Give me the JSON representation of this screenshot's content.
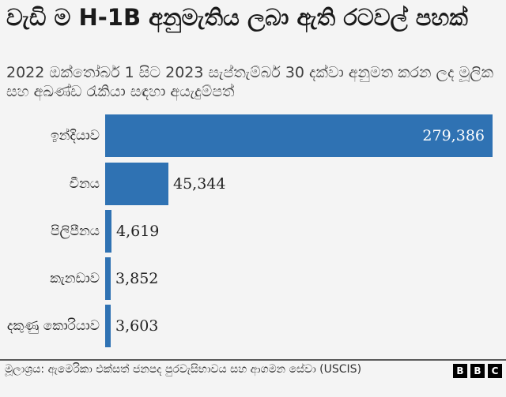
{
  "header": {
    "title": "වැඩි ම H-1B අනුමැතිය ලබා ඇති රටවල් පහක්",
    "subtitle": "2022 ඔක්තෝබර් 1 සිට 2023 සැප්තැම්බර් 30 දක්වා අනුමත කරන ලද මූලික සහ අඛණ්ඩ රැකියා සඳහා අයැදුම්පත්"
  },
  "chart_data": {
    "type": "bar",
    "orientation": "horizontal",
    "title": "වැඩි ම H-1B අනුමැතිය ලබා ඇති රටවල් පහක්",
    "subtitle": "2022 ඔක්තෝබර් 1 සිට 2023 සැප්තැම්බර් 30 දක්වා අනුමත කරන ලද මූලික සහ අඛණ්ඩ රැකියා සඳහා අයැදුම්පත්",
    "categories": [
      "ඉන්දියාව",
      "චීනය",
      "පිලිපීනය",
      "කැනඩාව",
      "දකුණු කොරියාව"
    ],
    "values": [
      279386,
      45344,
      4619,
      3852,
      3603
    ],
    "value_labels": [
      "279,386",
      "45,344",
      "4,619",
      "3,852",
      "3,603"
    ],
    "xlabel": "",
    "ylabel": "",
    "grid": false,
    "legend": null,
    "bar_color": "#2f72b3"
  },
  "rows": [
    {
      "label": "ඉන්දියාව",
      "value": "279,386"
    },
    {
      "label": "චීනය",
      "value": "45,344"
    },
    {
      "label": "පිලිපීනය",
      "value": "4,619"
    },
    {
      "label": "කැනඩාව",
      "value": "3,852"
    },
    {
      "label": "දකුණු කොරියාව",
      "value": "3,603"
    }
  ],
  "footer": {
    "source": "මූලාශ්‍රය: ඇමෙරිකා එක්සත් ජනපද පුරවැසිභාවය සහ ආගමන සේවා (USCIS)",
    "logo": [
      "B",
      "B",
      "C"
    ]
  },
  "colors": {
    "bar": "#2f72b3",
    "background": "#f4f4f4"
  }
}
